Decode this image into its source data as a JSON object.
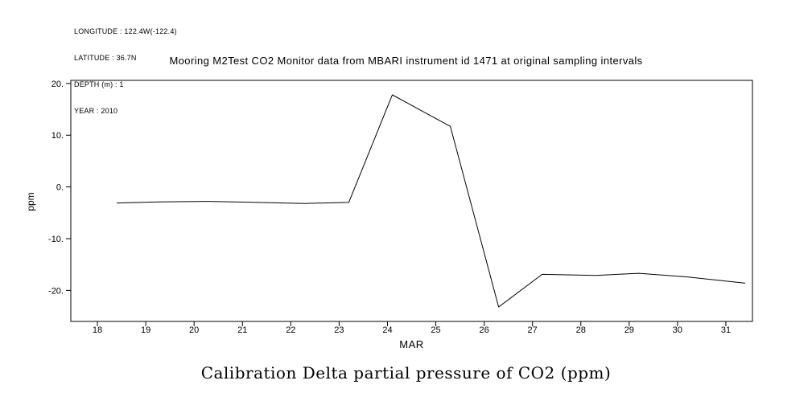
{
  "header": {
    "lines": [
      "LONGITUDE : 122.4W(-122.4)",
      "LATITUDE : 36.7N",
      "DEPTH (m) : 1",
      "YEAR : 2010"
    ]
  },
  "caption": "Calibration Delta partial pressure of CO2 (ppm)",
  "chart_data": {
    "type": "line",
    "title": "Mooring M2Test CO2 Monitor data from MBARI instrument id 1471 at original sampling intervals",
    "xlabel": "MAR",
    "ylabel": "ppm",
    "xlim": [
      17.45,
      31.55
    ],
    "ylim": [
      -26.0,
      20.6
    ],
    "grid": false,
    "legend_position": "none",
    "line_color": "#000000",
    "xticks": [
      18,
      19,
      20,
      21,
      22,
      23,
      24,
      25,
      26,
      27,
      28,
      29,
      30,
      31
    ],
    "xtick_labels": [
      "18",
      "19",
      "20",
      "21",
      "22",
      "23",
      "24",
      "25",
      "26",
      "27",
      "28",
      "29",
      "30",
      "31"
    ],
    "yticks": [
      20,
      10,
      0,
      -10,
      -20
    ],
    "ytick_labels": [
      "20.",
      "10.",
      "0.",
      "-10.",
      "-20."
    ],
    "series": [
      {
        "name": "Calibration Delta pCO2",
        "x": [
          18.4,
          19.3,
          20.3,
          21.3,
          22.3,
          23.2,
          24.1,
          25.3,
          26.3,
          27.2,
          28.3,
          29.2,
          30.2,
          31.4
        ],
        "y": [
          -3.1,
          -2.9,
          -2.8,
          -3.0,
          -3.2,
          -3.0,
          17.8,
          11.7,
          -23.2,
          -16.9,
          -17.1,
          -16.7,
          -17.4,
          -18.6
        ]
      }
    ]
  }
}
